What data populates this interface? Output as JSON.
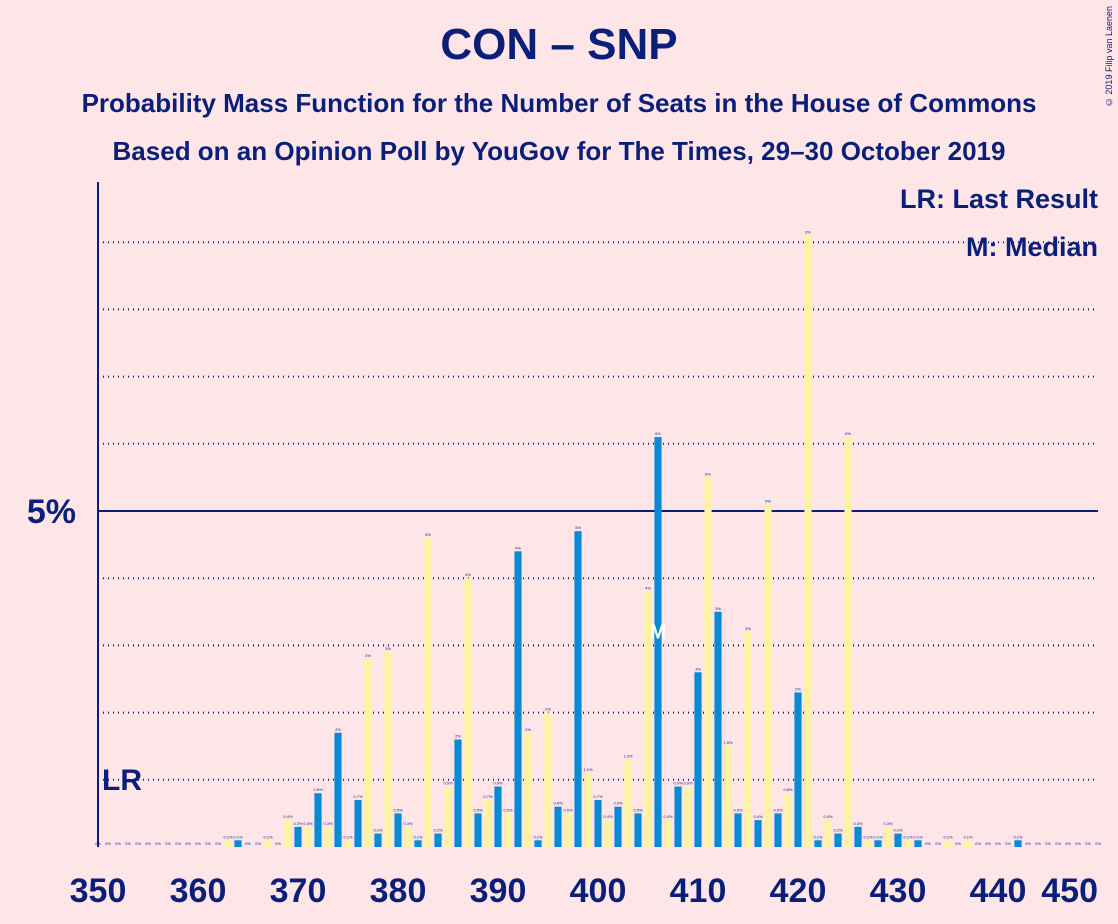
{
  "header": {
    "title": "CON – SNP",
    "subtitle1": "Probability Mass Function for the Number of Seats in the House of Commons",
    "subtitle2": "Based on an Opinion Poll by YouGov for The Times, 29–30 October 2019",
    "copyright": "© 2019 Filip van Laenen"
  },
  "legend": {
    "last_result": "LR: Last Result",
    "median": "M: Median"
  },
  "colors": {
    "con": "#0a8ad4",
    "snp": "#fdf3a3",
    "axis": "#0a1f7a",
    "background": "#fee5e8"
  },
  "chart_data": {
    "type": "bar",
    "xlabel": "",
    "ylabel": "",
    "xlim": [
      350,
      450
    ],
    "ylim": [
      0,
      9.5
    ],
    "x_ticks": [
      350,
      360,
      370,
      380,
      390,
      400,
      410,
      420,
      430,
      440,
      450
    ],
    "y_tick_label": "5%",
    "y_tick_value": 5,
    "grid_lines": [
      1,
      2,
      3,
      4,
      6,
      7,
      8,
      9
    ],
    "last_result_label": "LR",
    "last_result_seat": 352,
    "last_result_level": 1.0,
    "median_label": "M",
    "median_seat": 406,
    "series": [
      {
        "name": "CON",
        "seat_parity": "even",
        "x": [
          350,
          352,
          354,
          356,
          358,
          360,
          362,
          364,
          366,
          368,
          370,
          372,
          374,
          376,
          378,
          380,
          382,
          384,
          386,
          388,
          390,
          392,
          394,
          396,
          398,
          400,
          402,
          404,
          406,
          408,
          410,
          412,
          414,
          416,
          418,
          420,
          422,
          424,
          426,
          428,
          430,
          432,
          434,
          436,
          438,
          440,
          442,
          444,
          446,
          448,
          450
        ],
        "values": [
          0,
          0,
          0,
          0,
          0,
          0,
          0,
          0.1,
          0,
          0,
          0.3,
          0.8,
          1.7,
          0.7,
          0.2,
          0.5,
          0.1,
          0.2,
          1.6,
          0.5,
          0.9,
          4.4,
          0.1,
          0.6,
          4.7,
          0.7,
          0.6,
          0.5,
          6.1,
          0.9,
          2.6,
          3.5,
          0.5,
          0.4,
          0.5,
          2.3,
          0.1,
          0.2,
          0.3,
          0.1,
          0.2,
          0.1,
          0,
          0,
          0,
          0,
          0.1,
          0,
          0,
          0,
          0
        ],
        "labels": [
          "0%",
          "0%",
          "0%",
          "0%",
          "0%",
          "0%",
          "0%",
          "0.1%",
          "0%",
          "0%",
          "0.3%",
          "0.8%",
          "2%",
          "0.7%",
          "0.2%",
          "0.5%",
          "0.1%",
          "0.2%",
          "2%",
          "0.5%",
          "0.9%",
          "4%",
          "0.1%",
          "0.6%",
          "5%",
          "0.7%",
          "0.6%",
          "0.5%",
          "6%",
          "0.9%",
          "3%",
          "3%",
          "0.5%",
          "0.4%",
          "0.5%",
          "2%",
          "0.1%",
          "0.2%",
          "0.3%",
          "0.1%",
          "0.2%",
          "0.1%",
          "0%",
          "0%",
          "0%",
          "0%",
          "0.1%",
          "0%",
          "0%",
          "0%",
          "0%"
        ]
      },
      {
        "name": "SNP",
        "seat_parity": "odd",
        "x": [
          351,
          353,
          355,
          357,
          359,
          361,
          363,
          365,
          367,
          369,
          371,
          373,
          375,
          377,
          379,
          381,
          383,
          385,
          387,
          389,
          391,
          393,
          395,
          397,
          399,
          401,
          403,
          405,
          407,
          409,
          411,
          413,
          415,
          417,
          419,
          421,
          423,
          425,
          427,
          429,
          431,
          433,
          435,
          437,
          439,
          441,
          443,
          445,
          447,
          449
        ],
        "values": [
          0,
          0,
          0,
          0,
          0,
          0,
          0.1,
          0,
          0.1,
          0.4,
          0.3,
          0.3,
          0.1,
          2.8,
          2.9,
          0.3,
          4.6,
          0.9,
          4.0,
          0.7,
          0.5,
          1.7,
          2.0,
          0.5,
          1.1,
          0.4,
          1.3,
          3.8,
          0.4,
          0.9,
          5.5,
          1.5,
          3.2,
          5.1,
          0.8,
          9.1,
          0.4,
          6.1,
          0.1,
          0.3,
          0.1,
          0,
          0.1,
          0.1,
          0,
          0,
          0,
          0,
          0,
          0
        ],
        "labels": [
          "0%",
          "0%",
          "0%",
          "0%",
          "0%",
          "0%",
          "0.1%",
          "0%",
          "0.1%",
          "0.4%",
          "0.3%",
          "0.3%",
          "0.1%",
          "3%",
          "3%",
          "0.3%",
          "5%",
          "0.9%",
          "4%",
          "0.7%",
          "0.5%",
          "2%",
          "2%",
          "0.5%",
          "1.1%",
          "0.4%",
          "1.3%",
          "4%",
          "0.4%",
          "0.9%",
          "6%",
          "1.5%",
          "3%",
          "5%",
          "0.8%",
          "9%",
          "0.4%",
          "6%",
          "0.1%",
          "0.3%",
          "0.1%",
          "0%",
          "0.1%",
          "0.1%",
          "0%",
          "0%",
          "0%",
          "0%",
          "0%",
          "0%"
        ]
      }
    ]
  }
}
